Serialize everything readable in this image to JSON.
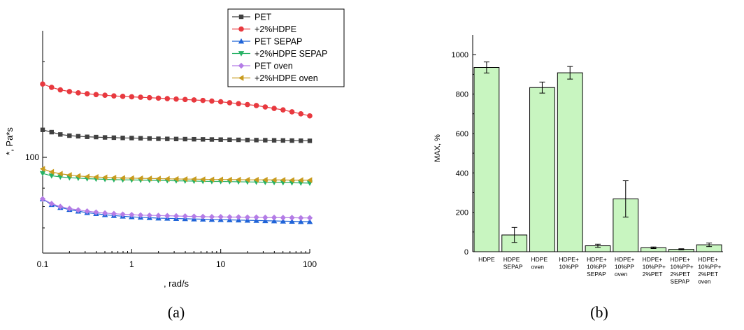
{
  "figure": {
    "panels": [
      "(a)",
      "(b)"
    ]
  },
  "chart_data": [
    {
      "type": "line",
      "title": "",
      "xlabel": ", rad/s",
      "ylabel": "*, Pa*s",
      "x_scale": "log",
      "y_scale": "log",
      "xlim": [
        0.1,
        100
      ],
      "ylim": [
        50,
        250
      ],
      "x_ticks": [
        0.1,
        1,
        10,
        100
      ],
      "x_tick_labels": [
        "0.1",
        "1",
        "10",
        "100"
      ],
      "y_ticks": [
        100
      ],
      "y_tick_labels": [
        "100"
      ],
      "grid": false,
      "legend_position": "top-right",
      "x": [
        0.1,
        0.126,
        0.158,
        0.2,
        0.251,
        0.316,
        0.398,
        0.501,
        0.631,
        0.794,
        1,
        1.259,
        1.585,
        1.995,
        2.512,
        3.162,
        3.981,
        5.012,
        6.31,
        7.943,
        10,
        12.59,
        15.85,
        19.95,
        25.12,
        31.62,
        39.81,
        50.12,
        63.1,
        79.43,
        100
      ],
      "series": [
        {
          "name": "PET",
          "color": "#404040",
          "marker": "square",
          "values": [
            122,
            120,
            118,
            117,
            116.5,
            116,
            115.8,
            115.5,
            115.3,
            115.1,
            115,
            114.8,
            114.6,
            114.4,
            114.3,
            114.2,
            114.1,
            114,
            113.9,
            113.8,
            113.7,
            113.6,
            113.5,
            113.4,
            113.3,
            113.2,
            113.1,
            113,
            112.9,
            112.8,
            112.7
          ]
        },
        {
          "name": "+2%HDPE",
          "color": "#e8393f",
          "marker": "circle",
          "values": [
            170,
            166,
            163,
            161,
            159.5,
            158.5,
            157.5,
            156.8,
            156,
            155.5,
            155,
            154.5,
            154,
            153.5,
            153,
            152.5,
            152,
            151.5,
            151,
            150.3,
            149.5,
            148.5,
            147.5,
            146.5,
            145.5,
            144,
            142.5,
            141,
            139,
            137,
            135
          ]
        },
        {
          "name": "PET SEPAP",
          "color": "#1f64d8",
          "marker": "triangle-up",
          "values": [
            74,
            71,
            69.5,
            68.5,
            67.7,
            67,
            66.5,
            66,
            65.6,
            65.3,
            65,
            64.8,
            64.6,
            64.4,
            64.3,
            64.2,
            64.1,
            64,
            63.9,
            63.8,
            63.7,
            63.6,
            63.5,
            63.4,
            63.3,
            63.2,
            63.1,
            63,
            62.9,
            62.8,
            62.8
          ]
        },
        {
          "name": "+2%HDPE SEPAP",
          "color": "#27b265",
          "marker": "triangle-down",
          "values": [
            89,
            87.5,
            86.8,
            86.3,
            86,
            85.7,
            85.5,
            85.3,
            85.1,
            85,
            84.9,
            84.8,
            84.7,
            84.6,
            84.5,
            84.4,
            84.3,
            84.2,
            84.1,
            84,
            84,
            83.9,
            83.8,
            83.7,
            83.6,
            83.5,
            83.4,
            83.3,
            83.2,
            83.1,
            83
          ]
        },
        {
          "name": "PET oven",
          "color": "#b47ce6",
          "marker": "diamond",
          "values": [
            74,
            71.5,
            70,
            69,
            68.3,
            67.7,
            67.2,
            66.8,
            66.5,
            66.2,
            66,
            65.8,
            65.7,
            65.6,
            65.5,
            65.4,
            65.3,
            65.2,
            65.1,
            65,
            65,
            64.9,
            64.9,
            64.8,
            64.8,
            64.7,
            64.7,
            64.6,
            64.6,
            64.5,
            64.5
          ]
        },
        {
          "name": "+2%HDPE oven",
          "color": "#c89b1e",
          "marker": "triangle-left",
          "values": [
            92,
            90,
            88.8,
            88,
            87.4,
            87,
            86.7,
            86.5,
            86.3,
            86.1,
            86,
            85.9,
            85.8,
            85.7,
            85.6,
            85.5,
            85.4,
            85.4,
            85.3,
            85.2,
            85.2,
            85.1,
            85.1,
            85,
            85,
            85,
            84.9,
            84.9,
            84.8,
            84.8,
            84.8
          ]
        }
      ]
    },
    {
      "type": "bar",
      "title": "",
      "xlabel": "",
      "ylabel": "MAX, %",
      "ylim": [
        0,
        1100
      ],
      "y_ticks": [
        0,
        200,
        400,
        600,
        800,
        1000
      ],
      "y_tick_labels": [
        "0",
        "200",
        "400",
        "600",
        "800",
        "1000"
      ],
      "grid": false,
      "bar_color": "#c8f5c0",
      "categories": [
        "HDPE",
        "HDPE SEPAP",
        "HDPE oven",
        "HDPE+ 10%PP",
        "HDPE+ 10%PP SEPAP",
        "HDPE+ 10%PP oven",
        "HDPE+ 10%PP+ 2%PET",
        "HDPE+ 10%PP+ 2%PET SEPAP",
        "HDPE+ 10%PP+ 2%PET oven"
      ],
      "category_lines": [
        [
          "HDPE"
        ],
        [
          "HDPE",
          "SEPAP"
        ],
        [
          "HDPE",
          "oven"
        ],
        [
          "HDPE+",
          "10%PP"
        ],
        [
          "HDPE+",
          "10%PP",
          "SEPAP"
        ],
        [
          "HDPE+",
          "10%PP",
          "oven"
        ],
        [
          "HDPE+",
          "10%PP+",
          "2%PET"
        ],
        [
          "HDPE+",
          "10%PP+",
          "2%PET",
          "SEPAP"
        ],
        [
          "HDPE+",
          "10%PP+",
          "2%PET",
          "oven"
        ]
      ],
      "values": [
        935,
        85,
        833,
        908,
        30,
        268,
        20,
        12,
        35
      ],
      "errors": [
        28,
        38,
        28,
        32,
        8,
        92,
        4,
        3,
        9
      ]
    }
  ]
}
